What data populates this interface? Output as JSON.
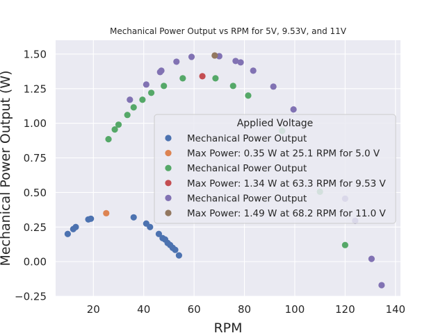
{
  "chart_data": {
    "type": "scatter",
    "title": "Mechanical Power Output vs RPM for 5V, 9.53V, and 11V",
    "xlabel": "RPM",
    "ylabel": "Mechanical Power Output (W)",
    "xlim": [
      5,
      142
    ],
    "ylim": [
      -0.25,
      1.6
    ],
    "xticks": [
      20,
      40,
      60,
      80,
      100,
      120,
      140
    ],
    "yticks": [
      -0.25,
      0.0,
      0.25,
      0.5,
      0.75,
      1.0,
      1.25,
      1.5
    ],
    "xtick_labels": [
      "20",
      "40",
      "60",
      "80",
      "100",
      "120",
      "140"
    ],
    "ytick_labels": [
      "−0.25",
      "0.00",
      "0.25",
      "0.50",
      "0.75",
      "1.00",
      "1.25",
      "1.50"
    ],
    "grid": true,
    "legend": {
      "title": "Applied Voltage",
      "placement": "center-right"
    },
    "series": [
      {
        "name": "Mechanical Power Output",
        "color": "#4c72b0",
        "points": [
          [
            9.8,
            0.2
          ],
          [
            12,
            0.235
          ],
          [
            13,
            0.25
          ],
          [
            18,
            0.305
          ],
          [
            19,
            0.31
          ],
          [
            36,
            0.32
          ],
          [
            41,
            0.275
          ],
          [
            42.5,
            0.25
          ],
          [
            46,
            0.2
          ],
          [
            47.5,
            0.17
          ],
          [
            48.5,
            0.16
          ],
          [
            49.5,
            0.135
          ],
          [
            50.5,
            0.12
          ],
          [
            51.5,
            0.1
          ],
          [
            52.5,
            0.085
          ],
          [
            54,
            0.045
          ]
        ]
      },
      {
        "name": "Max Power: 0.35 W at 25.1 RPM for 5.0 V",
        "color": "#dd8452",
        "points": [
          [
            25.1,
            0.35
          ]
        ]
      },
      {
        "name": "Mechanical Power Output",
        "color": "#55a868",
        "points": [
          [
            26,
            0.885
          ],
          [
            28.5,
            0.955
          ],
          [
            30,
            0.99
          ],
          [
            33.5,
            1.06
          ],
          [
            36,
            1.115
          ],
          [
            39.5,
            1.17
          ],
          [
            43,
            1.22
          ],
          [
            48,
            1.27
          ],
          [
            55.5,
            1.325
          ],
          [
            68.5,
            1.325
          ],
          [
            75.5,
            1.27
          ],
          [
            81.5,
            1.2
          ],
          [
            95,
            0.945
          ],
          [
            110,
            0.505
          ],
          [
            120,
            0.12
          ]
        ]
      },
      {
        "name": "Max Power: 1.34 W at 63.3 RPM for 9.53 V",
        "color": "#c44e52",
        "points": [
          [
            63.3,
            1.34
          ]
        ]
      },
      {
        "name": "Mechanical Power Output",
        "color": "#8172b3",
        "points": [
          [
            34.5,
            1.17
          ],
          [
            41,
            1.28
          ],
          [
            46.5,
            1.37
          ],
          [
            47,
            1.38
          ],
          [
            53,
            1.445
          ],
          [
            59,
            1.48
          ],
          [
            70,
            1.485
          ],
          [
            76.5,
            1.45
          ],
          [
            78.5,
            1.44
          ],
          [
            83.5,
            1.38
          ],
          [
            91.5,
            1.265
          ],
          [
            99.5,
            1.1
          ],
          [
            120,
            0.455
          ],
          [
            124,
            0.295
          ],
          [
            130.5,
            0.02
          ],
          [
            134.5,
            -0.17
          ]
        ]
      },
      {
        "name": "Max Power: 1.49 W at 68.2 RPM for 11.0 V",
        "color": "#937860",
        "points": [
          [
            68.2,
            1.49
          ]
        ]
      }
    ]
  }
}
